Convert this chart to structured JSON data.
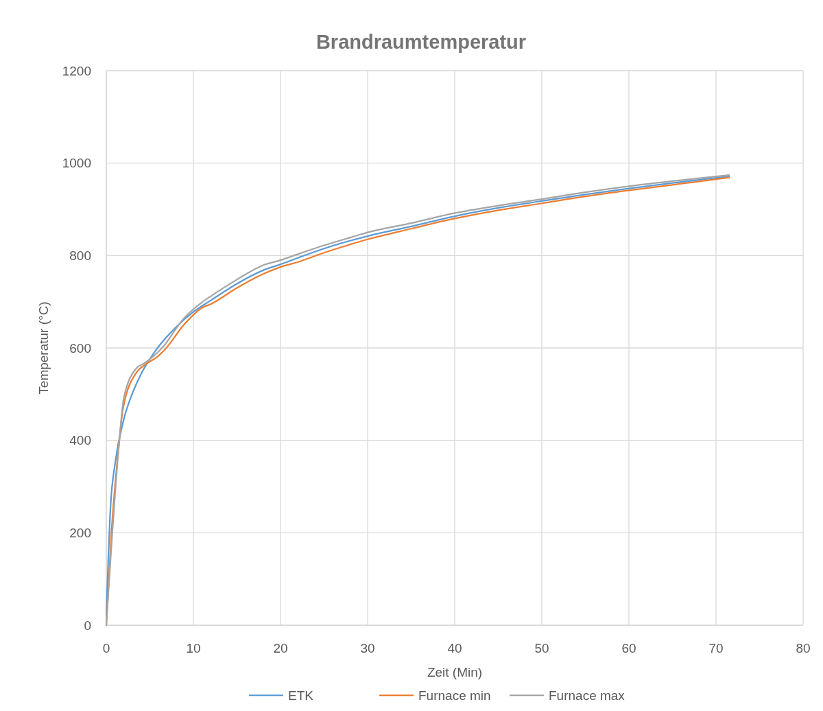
{
  "chart_data": {
    "type": "line",
    "title": "Brandraumtemperatur",
    "xlabel": "Zeit (Min)",
    "ylabel": "Temperatur (°C)",
    "xlim": [
      0,
      80
    ],
    "xticks": [
      0,
      10,
      20,
      30,
      40,
      50,
      60,
      70,
      80
    ],
    "ylim": [
      0,
      1200
    ],
    "yticks": [
      0,
      200,
      400,
      600,
      800,
      1000,
      1200
    ],
    "grid": true,
    "legend": "bottom",
    "marker": "none",
    "line_style": "solid",
    "series": [
      {
        "name": "ETK",
        "color": "#5b9bd5",
        "x": [
          0,
          0.5,
          1,
          2,
          3,
          4,
          5,
          6,
          8,
          10,
          12,
          15,
          18,
          20,
          22,
          25,
          28,
          30,
          35,
          40,
          45,
          50,
          55,
          60,
          65,
          70,
          71.5
        ],
        "values": [
          20,
          261,
          349,
          445,
          502,
          544,
          576,
          603,
          645,
          678,
          703,
          739,
          768,
          781,
          795,
          815,
          832,
          842,
          863,
          885,
          903,
          918,
          932,
          945,
          957,
          968,
          971
        ]
      },
      {
        "name": "Furnace min",
        "color": "#ed7d31",
        "x": [
          0,
          0.6,
          1.5,
          1.9,
          3.5,
          4.4,
          6,
          6.8,
          8.9,
          11,
          12,
          15,
          18,
          20,
          22,
          25,
          28,
          30,
          35,
          40,
          45,
          50,
          55,
          60,
          65,
          70,
          71.5
        ],
        "values": [
          0,
          203,
          400,
          467,
          548,
          563,
          583,
          598,
          650,
          687,
          695,
          730,
          760,
          775,
          786,
          806,
          824,
          835,
          858,
          880,
          898,
          913,
          928,
          941,
          953,
          965,
          969
        ]
      },
      {
        "name": "Furnace max",
        "color": "#a5a5a5",
        "x": [
          0,
          1.5,
          2,
          3.5,
          4.3,
          6.4,
          8.9,
          11,
          12,
          15,
          18,
          20,
          22,
          25,
          28,
          30,
          35,
          40,
          45,
          50,
          55,
          60,
          65,
          70,
          71.5
        ],
        "values": [
          0,
          400,
          491,
          557,
          566,
          600,
          664,
          699,
          712,
          748,
          779,
          790,
          803,
          822,
          839,
          850,
          870,
          892,
          908,
          922,
          937,
          950,
          961,
          971,
          974
        ]
      }
    ]
  }
}
